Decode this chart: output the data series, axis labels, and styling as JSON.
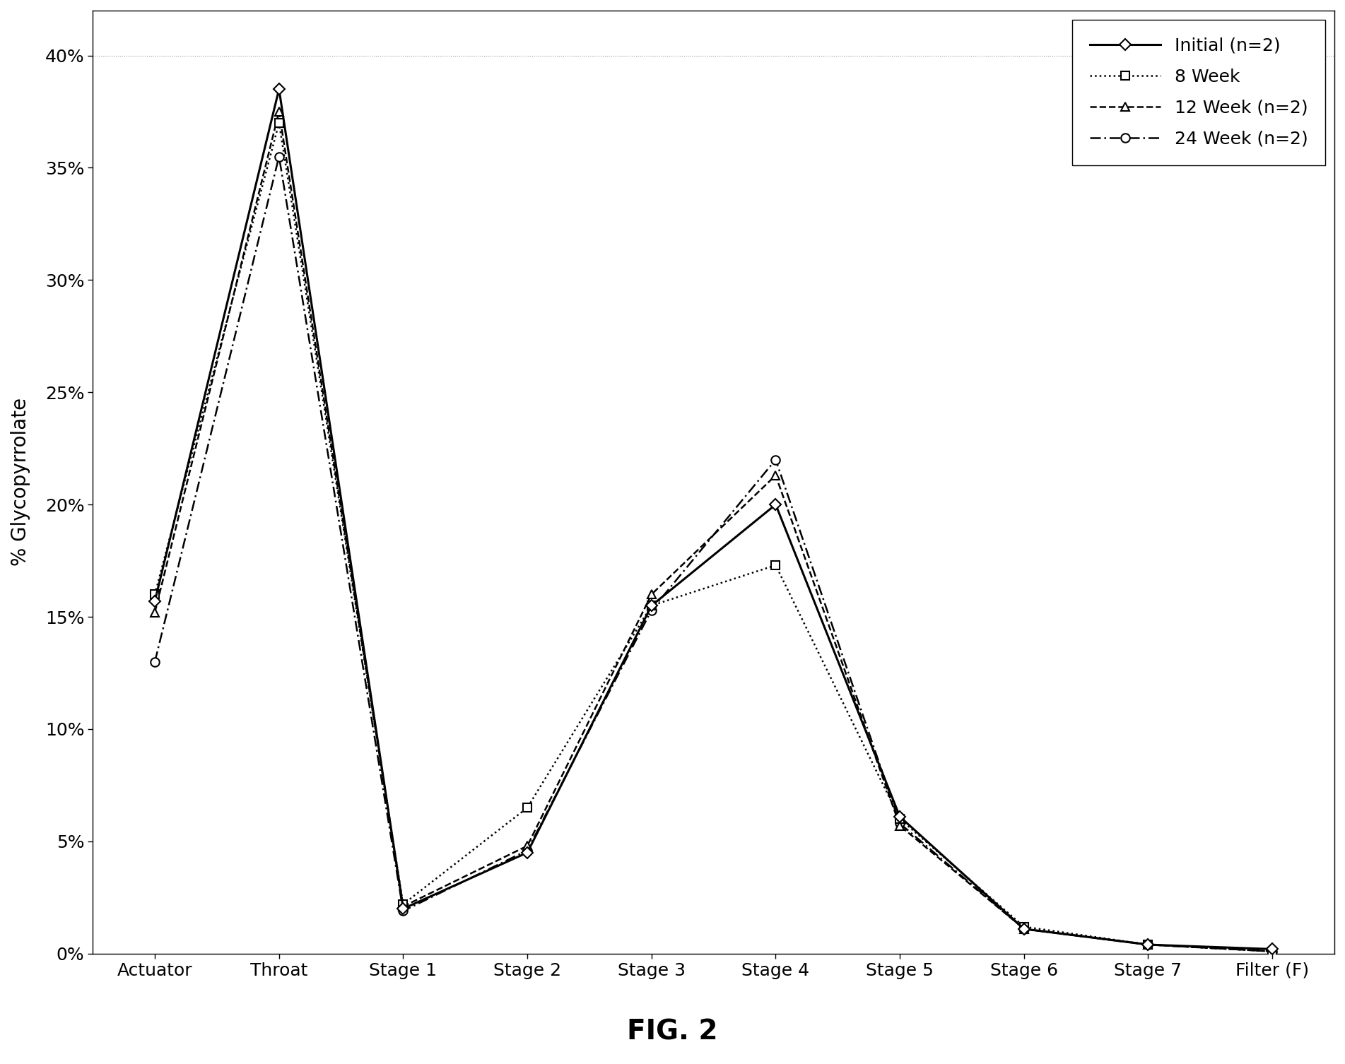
{
  "categories": [
    "Actuator",
    "Throat",
    "Stage 1",
    "Stage 2",
    "Stage 3",
    "Stage 4",
    "Stage 5",
    "Stage 6",
    "Stage 7",
    "Filter (F)"
  ],
  "series": [
    {
      "label": "Initial (n=2)",
      "values": [
        0.157,
        0.385,
        0.02,
        0.045,
        0.155,
        0.2,
        0.061,
        0.011,
        0.004,
        0.002
      ],
      "color": "#000000",
      "linestyle": "-",
      "marker": "D",
      "marker_size": 8,
      "linewidth": 2.2,
      "zorder": 5
    },
    {
      "label": "8 Week",
      "values": [
        0.16,
        0.37,
        0.022,
        0.065,
        0.155,
        0.173,
        0.06,
        0.012,
        0.004,
        0.001
      ],
      "color": "#000000",
      "linestyle": ":",
      "marker": "s",
      "marker_size": 8,
      "linewidth": 1.8,
      "zorder": 4
    },
    {
      "label": "12 Week (n=2)",
      "values": [
        0.152,
        0.375,
        0.021,
        0.048,
        0.16,
        0.213,
        0.057,
        0.011,
        0.004,
        0.001
      ],
      "color": "#000000",
      "linestyle": "--",
      "marker": "^",
      "marker_size": 8,
      "linewidth": 1.8,
      "zorder": 3
    },
    {
      "label": "24 Week (n=2)",
      "values": [
        0.13,
        0.355,
        0.019,
        0.046,
        0.153,
        0.22,
        0.058,
        0.011,
        0.004,
        0.001
      ],
      "color": "#000000",
      "linestyle": "--",
      "marker": "o",
      "marker_size": 9,
      "linewidth": 1.8,
      "zorder": 2
    }
  ],
  "ylabel": "% Glycopyrrolate",
  "ylim": [
    0.0,
    0.42
  ],
  "yticks": [
    0.0,
    0.05,
    0.1,
    0.15,
    0.2,
    0.25,
    0.3,
    0.35,
    0.4
  ],
  "ytick_labels": [
    "0%",
    "5%",
    "10%",
    "15%",
    "20%",
    "25%",
    "30%",
    "35%",
    "40%"
  ],
  "legend_loc": "upper right",
  "background_color": "#ffffff",
  "fig_caption": "FIG. 2"
}
